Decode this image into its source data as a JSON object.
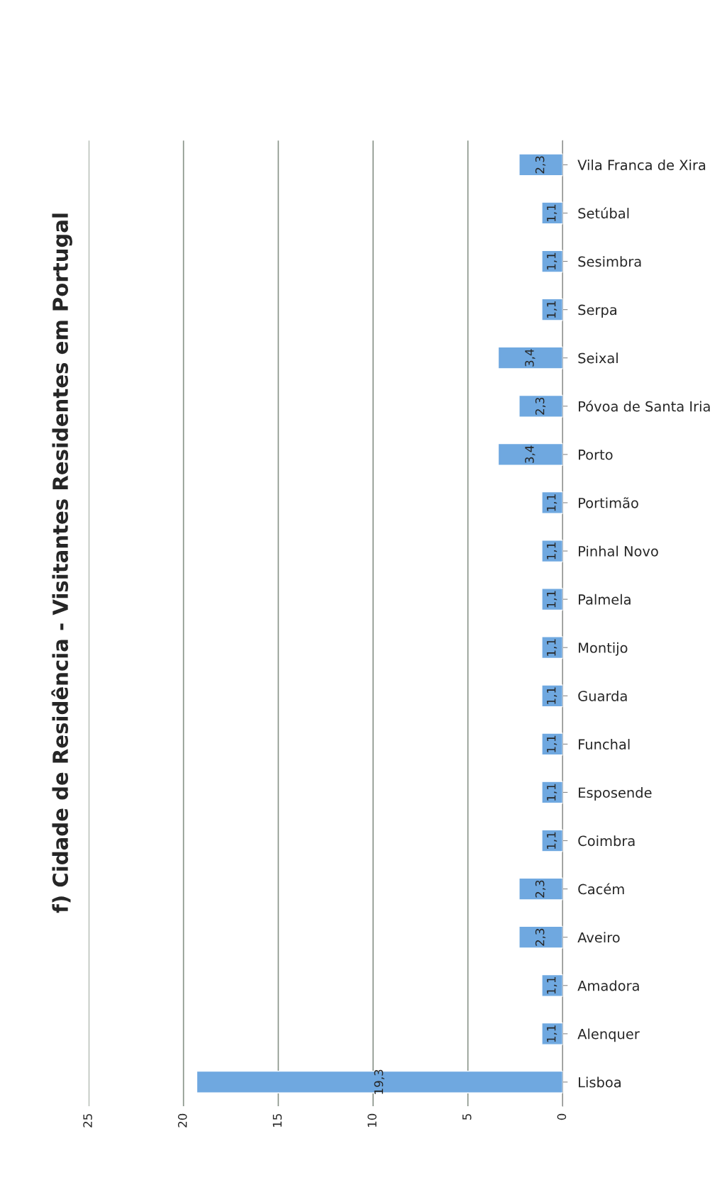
{
  "chart_data": {
    "type": "bar",
    "orientation": "horizontal",
    "title": "f) Cidade de Residência - Visitantes Residentes em Portugal",
    "categories": [
      "Vila Franca de Xira",
      "Setúbal",
      "Sesimbra",
      "Serpa",
      "Seixal",
      "Póvoa de Santa Iria",
      "Porto",
      "Portimão",
      "Pinhal Novo",
      "Palmela",
      "Montijo",
      "Guarda",
      "Funchal",
      "Esposende",
      "Coimbra",
      "Cacém",
      "Aveiro",
      "Amadora",
      "Alenquer",
      "Lisboa"
    ],
    "values": [
      2.3,
      1.1,
      1.1,
      1.1,
      3.4,
      2.3,
      3.4,
      1.1,
      1.1,
      1.1,
      1.1,
      1.1,
      1.1,
      1.1,
      1.1,
      2.3,
      2.3,
      1.1,
      1.1,
      19.3
    ],
    "value_labels": [
      "2,3",
      "1,1",
      "1,1",
      "1,1",
      "3,4",
      "2,3",
      "3,4",
      "1,1",
      "1,1",
      "1,1",
      "1,1",
      "1,1",
      "1,1",
      "1,1",
      "1,1",
      "2,3",
      "2,3",
      "1,1",
      "1,1",
      "19,3"
    ],
    "color": "#6fa8e0",
    "xlim": [
      25,
      0
    ],
    "xticks": [
      25,
      20,
      15,
      10,
      5,
      0
    ],
    "grid": "x",
    "legend": false
  }
}
